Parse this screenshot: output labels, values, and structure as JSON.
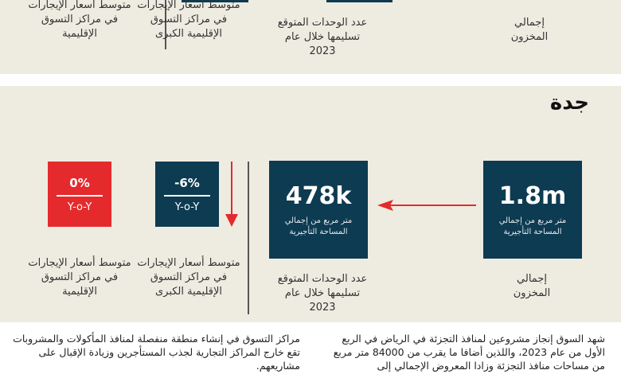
{
  "top_section": {
    "labels": [
      "متوسط أسعار الإيجارات في مراكز التسوق الإقليمية",
      "متوسط أسعار الإيجارات في مراكز التسوق الإقليمية الكبرى",
      "عدد الوحدات المتوقع تسليمها خلال عام",
      "إجمالي المخزون"
    ],
    "year": "2023"
  },
  "jeddah": {
    "title": "جدة",
    "total_stock": {
      "value": "1.8m",
      "caption": "متر مربع من إجمالي المساحة التأجيرية",
      "label": "إجمالي المخزون"
    },
    "expected_units": {
      "value": "478k",
      "caption": "متر مربع من إجمالي المساحة التأجيرية",
      "label": "عدد الوحدات المتوقع تسليمها خلال عام",
      "year": "2023"
    },
    "super_regional_rent": {
      "change": "-6%",
      "period": "Y-o-Y",
      "label": "متوسط أسعار الإيجارات في مراكز التسوق الإقليمية الكبرى",
      "trend": "down"
    },
    "regional_rent": {
      "change": "0%",
      "period": "Y-o-Y",
      "label": "متوسط أسعار الإيجارات في مراكز التسوق الإقليمية"
    }
  },
  "colors": {
    "navy": "#0d3b52",
    "red": "#e52a2d",
    "background": "#eeebe1"
  },
  "paragraphs": {
    "right": "شهد السوق إنجاز مشروعين لمنافذ التجزئة في الرياض في الربع الأول من عام 2023، واللذين أضافا ما يقرب من 84000 متر مربع من مساحات منافذ التجزئة وزادا المعروض الإجمالي إلى",
    "left": "مراكز التسوق في إنشاء منطقة منفصلة لمنافذ المأكولات والمشروبات تقع خارج المراكز التجارية لجذب المستأجرين وزيادة الإقبال على مشاريعهم."
  }
}
